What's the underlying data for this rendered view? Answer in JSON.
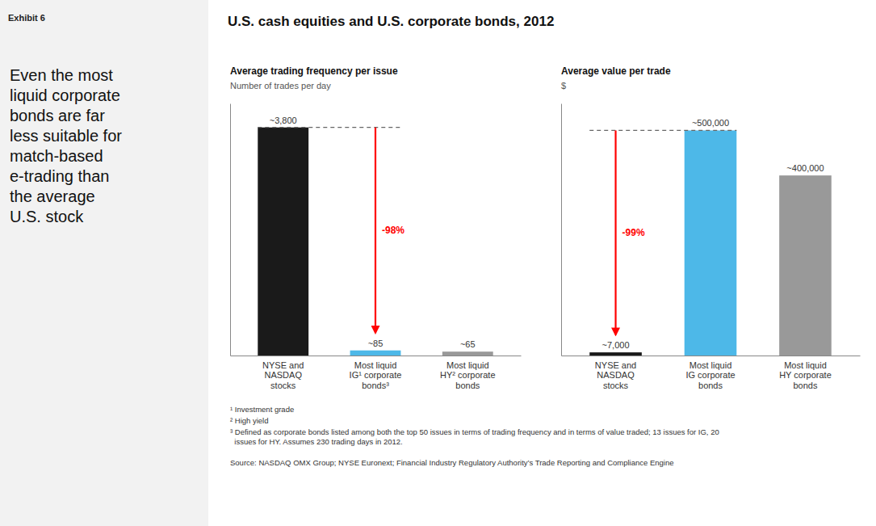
{
  "title": "U.S. cash equities and U.S. corporate bonds, 2012",
  "exhibit_label": "Exhibit 6",
  "sidebar_text": "Even the most\nliquid corporate\nbonds are far\nless suitable for\nmatch-based\ne-trading than\nthe average\nU.S. stock",
  "footnotes": [
    "¹ Investment grade",
    "² High yield",
    "³ Defined as corporate bonds listed among both the top 50 issues in terms of trading frequency and in terms of value traded; 13 issues for IG, 20\n  issues for HY. Assumes 230 trading days in 2012."
  ],
  "source": "Source: NASDAQ OMX Group; NYSE Euronext; Financial Industry Regulatory Authority’s Trade Reporting and Compliance Engine",
  "chart_data": [
    {
      "type": "bar",
      "title": "Average trading frequency per issue",
      "subtitle": "Number of trades per day",
      "categories": [
        "NYSE and\nNASDAQ\nstocks",
        "Most liquid\nIG¹ corporate\nbonds³",
        "Most liquid\nHY² corporate\nbonds"
      ],
      "values": [
        3800,
        85,
        65
      ],
      "value_labels": [
        "~3,800",
        "~85",
        "~65"
      ],
      "colors": [
        "#1a1a1a",
        "#4db8e8",
        "#999999"
      ],
      "data_labels": true,
      "annotations": [
        "-98%"
      ],
      "ylim": [
        0,
        4200
      ],
      "grid": false,
      "tick_labels": "x"
    },
    {
      "type": "bar",
      "title": "Average value per trade",
      "subtitle": "$",
      "categories": [
        "NYSE and\nNASDAQ\nstocks",
        "Most liquid\nIG corporate\nbonds",
        "Most liquid\nHY corporate\nbonds"
      ],
      "values": [
        7000,
        500000,
        400000
      ],
      "value_labels": [
        "~7,000",
        "~500,000",
        "~400,000"
      ],
      "colors": [
        "#1a1a1a",
        "#4db8e8",
        "#999999"
      ],
      "data_labels": true,
      "annotations": [
        "-99%"
      ],
      "ylim": [
        0,
        560000
      ],
      "grid": false,
      "tick_labels": "x"
    }
  ]
}
